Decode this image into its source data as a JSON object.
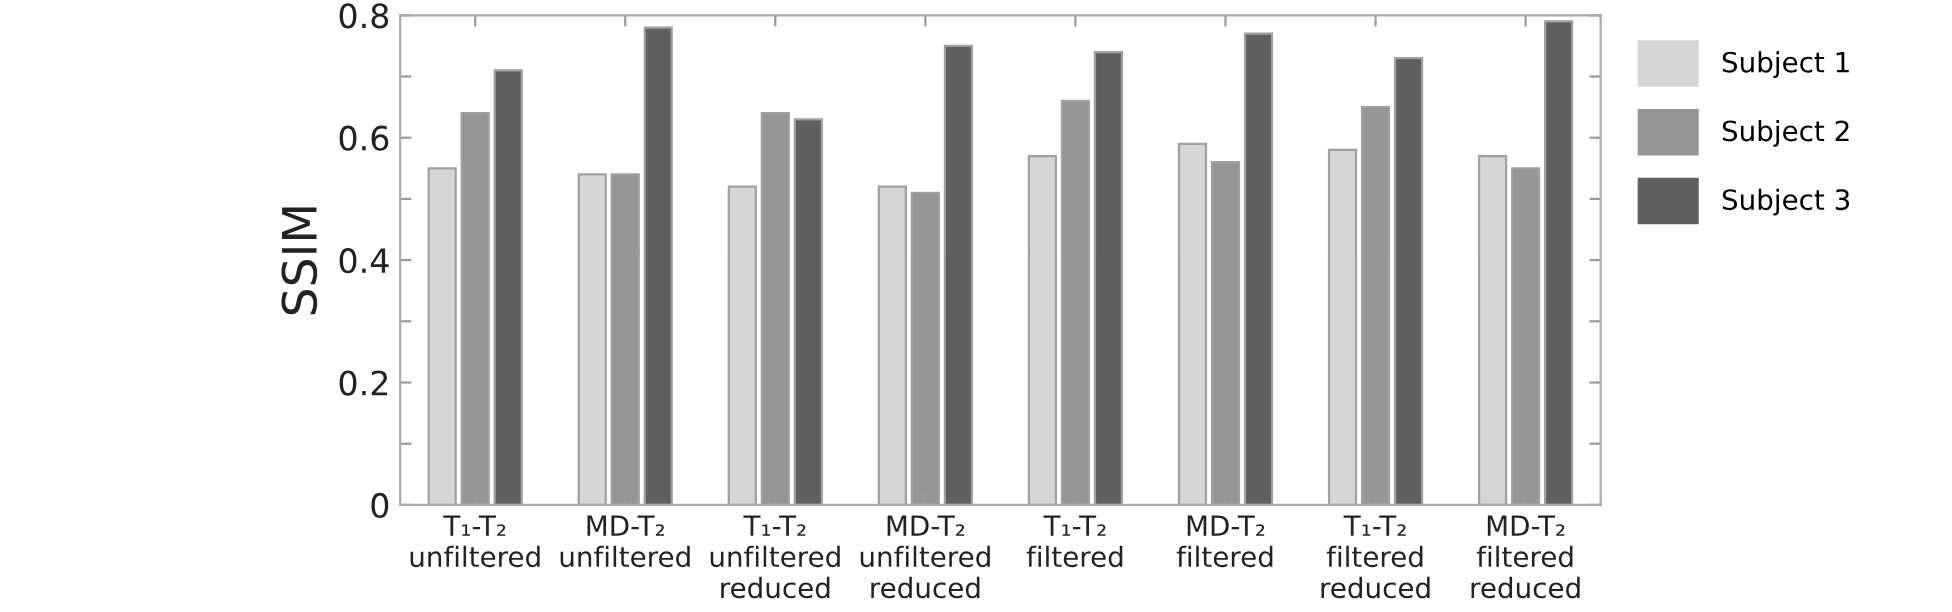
{
  "chart_data": {
    "type": "bar",
    "ylabel": "SSIM",
    "categories": [
      "T₁-T₂\nunfiltered",
      "MD-T₂\nunfiltered",
      "T₁-T₂\nunfiltered\nreduced",
      "MD-T₂\nunfiltered\nreduced",
      "T₁-T₂\nfiltered",
      "MD-T₂\nfiltered",
      "T₁-T₂\nfiltered\nreduced",
      "MD-T₂\nfiltered\nreduced"
    ],
    "series": [
      {
        "name": "Subject 1",
        "color": "#d6d6d6",
        "values": [
          0.55,
          0.54,
          0.52,
          0.52,
          0.57,
          0.59,
          0.58,
          0.57
        ]
      },
      {
        "name": "Subject 2",
        "color": "#959595",
        "values": [
          0.64,
          0.54,
          0.64,
          0.51,
          0.66,
          0.56,
          0.65,
          0.55
        ]
      },
      {
        "name": "Subject 3",
        "color": "#5f5f5f",
        "values": [
          0.71,
          0.78,
          0.63,
          0.75,
          0.74,
          0.77,
          0.73,
          0.79
        ]
      }
    ],
    "ylim": [
      0,
      0.8
    ],
    "yticks": [
      0,
      {
        "value": 0.1,
        "label": null
      },
      0.2,
      {
        "value": 0.3,
        "label": null
      },
      0.4,
      {
        "value": 0.5,
        "label": null
      },
      0.6,
      {
        "value": 0.7,
        "label": null
      },
      0.8
    ],
    "grid": false,
    "legend": "right"
  }
}
